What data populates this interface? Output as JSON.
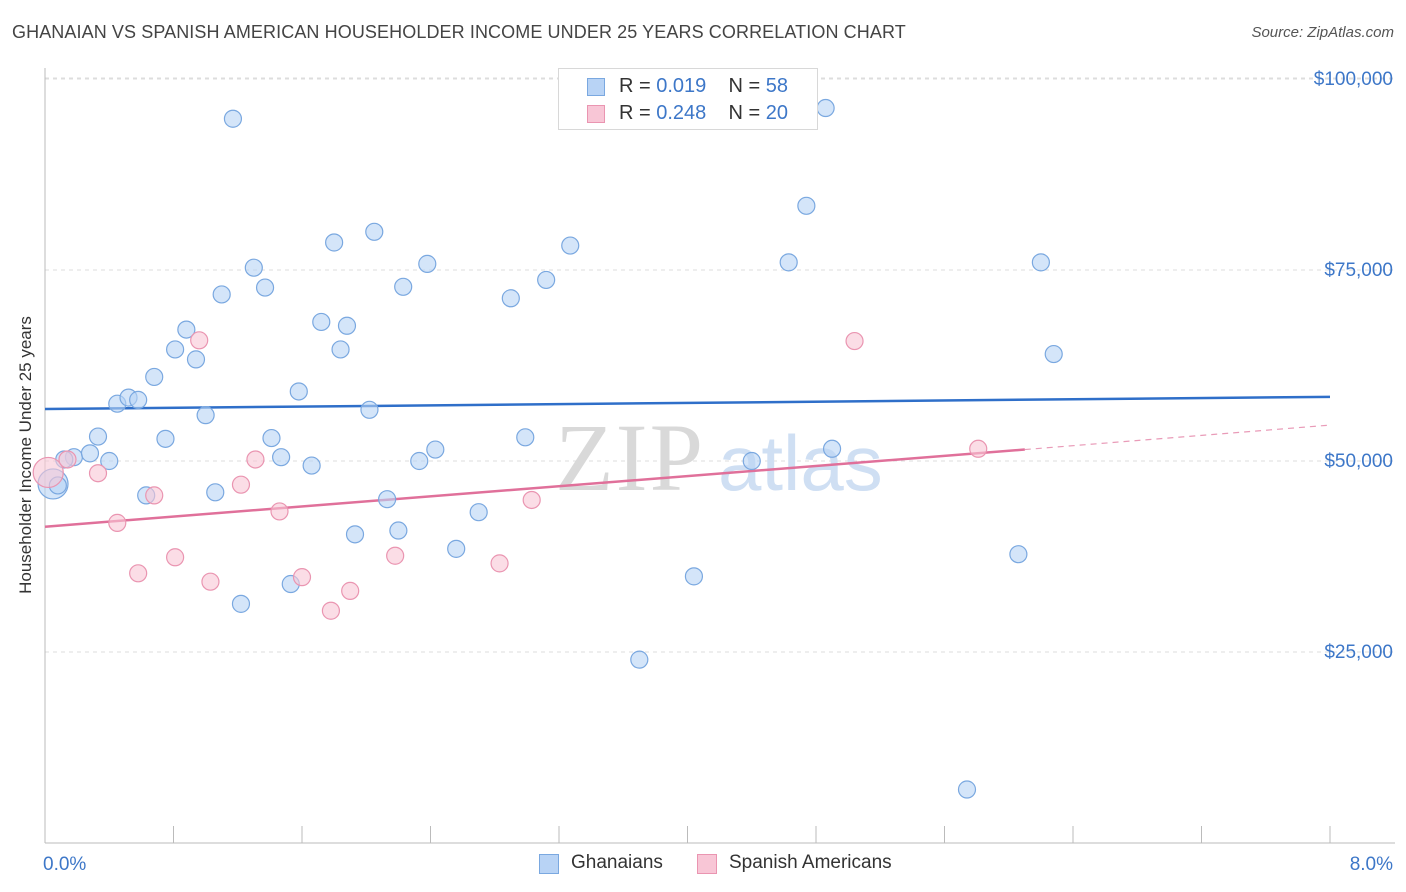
{
  "title": "GHANAIAN VS SPANISH AMERICAN HOUSEHOLDER INCOME UNDER 25 YEARS CORRELATION CHART",
  "source": "Source: ZipAtlas.com",
  "watermark": {
    "zip": "ZIP",
    "atlas": "atlas"
  },
  "legend": {
    "rows": [
      {
        "r_label": "R =",
        "r_value": "0.019",
        "n_label": "N =",
        "n_value": "58"
      },
      {
        "r_label": "R =",
        "r_value": "0.248",
        "n_label": "N =",
        "n_value": "20"
      }
    ]
  },
  "colors": {
    "ghanaian_fill": "#b8d3f5",
    "ghanaian_stroke": "#7aa8e0",
    "ghanaian_line": "#2f6fc9",
    "spanish_fill": "#f8c6d6",
    "spanish_stroke": "#ea95b1",
    "spanish_line": "#e0709a",
    "axis_text": "#3d77c8",
    "grid": "#dddddd"
  },
  "chart_data": {
    "type": "scatter",
    "xlabel": "",
    "ylabel": "Householder Income Under 25 years",
    "xlim": [
      0,
      8
    ],
    "ylim": [
      0,
      105000
    ],
    "x_tick_labels": [
      "0.0%",
      "8.0%"
    ],
    "y_ticks": [
      {
        "value": 25000,
        "label": "$25,000"
      },
      {
        "value": 50000,
        "label": "$50,000"
      },
      {
        "value": 75000,
        "label": "$75,000"
      },
      {
        "value": 100000,
        "label": "$100,000"
      }
    ],
    "grid": true,
    "legend_position": "top-center",
    "series": [
      {
        "name": "Ghanaians",
        "trend": {
          "x": [
            0,
            8
          ],
          "y": [
            56800,
            58400
          ]
        },
        "points": [
          {
            "x": 0.05,
            "y": 47000,
            "size": "large"
          },
          {
            "x": 0.18,
            "y": 50500
          },
          {
            "x": 0.28,
            "y": 51000
          },
          {
            "x": 0.33,
            "y": 53200
          },
          {
            "x": 0.4,
            "y": 50000
          },
          {
            "x": 0.45,
            "y": 57500
          },
          {
            "x": 0.52,
            "y": 58300
          },
          {
            "x": 0.58,
            "y": 58000
          },
          {
            "x": 0.63,
            "y": 45500
          },
          {
            "x": 0.68,
            "y": 61000
          },
          {
            "x": 0.75,
            "y": 52900
          },
          {
            "x": 0.81,
            "y": 64600
          },
          {
            "x": 0.88,
            "y": 67200
          },
          {
            "x": 0.94,
            "y": 63300
          },
          {
            "x": 1.0,
            "y": 56000
          },
          {
            "x": 1.06,
            "y": 45900
          },
          {
            "x": 1.1,
            "y": 71800
          },
          {
            "x": 1.17,
            "y": 94800
          },
          {
            "x": 1.22,
            "y": 31300
          },
          {
            "x": 1.3,
            "y": 75300
          },
          {
            "x": 1.37,
            "y": 72700
          },
          {
            "x": 1.41,
            "y": 53000
          },
          {
            "x": 1.47,
            "y": 50500
          },
          {
            "x": 1.53,
            "y": 33900
          },
          {
            "x": 1.58,
            "y": 59100
          },
          {
            "x": 1.66,
            "y": 49400
          },
          {
            "x": 1.72,
            "y": 68200
          },
          {
            "x": 1.8,
            "y": 78600
          },
          {
            "x": 1.84,
            "y": 64600
          },
          {
            "x": 1.88,
            "y": 67700
          },
          {
            "x": 1.93,
            "y": 40400
          },
          {
            "x": 2.02,
            "y": 56700
          },
          {
            "x": 2.05,
            "y": 80000
          },
          {
            "x": 2.13,
            "y": 45000
          },
          {
            "x": 2.2,
            "y": 40900
          },
          {
            "x": 2.23,
            "y": 72800
          },
          {
            "x": 2.33,
            "y": 50000
          },
          {
            "x": 2.38,
            "y": 75800
          },
          {
            "x": 2.43,
            "y": 51500
          },
          {
            "x": 2.56,
            "y": 38500
          },
          {
            "x": 2.7,
            "y": 43300
          },
          {
            "x": 2.9,
            "y": 71300
          },
          {
            "x": 2.99,
            "y": 53100
          },
          {
            "x": 3.12,
            "y": 73700
          },
          {
            "x": 3.27,
            "y": 78200
          },
          {
            "x": 3.7,
            "y": 24000
          },
          {
            "x": 4.04,
            "y": 34900
          },
          {
            "x": 4.4,
            "y": 50000
          },
          {
            "x": 4.63,
            "y": 76000
          },
          {
            "x": 4.74,
            "y": 83400
          },
          {
            "x": 4.86,
            "y": 96200
          },
          {
            "x": 4.9,
            "y": 51600
          },
          {
            "x": 5.74,
            "y": 7000
          },
          {
            "x": 6.06,
            "y": 37800
          },
          {
            "x": 6.2,
            "y": 76000
          },
          {
            "x": 6.28,
            "y": 64000
          },
          {
            "x": 0.08,
            "y": 46800
          },
          {
            "x": 0.12,
            "y": 50200
          }
        ]
      },
      {
        "name": "Spanish Americans",
        "trend": {
          "x": [
            0,
            6.1
          ],
          "y": [
            41400,
            51500
          ]
        },
        "trend_extension": {
          "x": [
            6.1,
            8
          ],
          "y": [
            51500,
            54700
          ]
        },
        "points": [
          {
            "x": 0.02,
            "y": 48500,
            "size": "large"
          },
          {
            "x": 0.14,
            "y": 50200
          },
          {
            "x": 0.33,
            "y": 48400
          },
          {
            "x": 0.45,
            "y": 41900
          },
          {
            "x": 0.58,
            "y": 35300
          },
          {
            "x": 0.68,
            "y": 45500
          },
          {
            "x": 0.81,
            "y": 37400
          },
          {
            "x": 0.96,
            "y": 65800
          },
          {
            "x": 1.03,
            "y": 34200
          },
          {
            "x": 1.22,
            "y": 46900
          },
          {
            "x": 1.31,
            "y": 50200
          },
          {
            "x": 1.46,
            "y": 43400
          },
          {
            "x": 1.6,
            "y": 34800
          },
          {
            "x": 1.78,
            "y": 30400
          },
          {
            "x": 1.9,
            "y": 33000
          },
          {
            "x": 2.18,
            "y": 37600
          },
          {
            "x": 2.83,
            "y": 36600
          },
          {
            "x": 3.03,
            "y": 44900
          },
          {
            "x": 5.04,
            "y": 65700
          },
          {
            "x": 5.81,
            "y": 51600
          }
        ]
      }
    ]
  }
}
